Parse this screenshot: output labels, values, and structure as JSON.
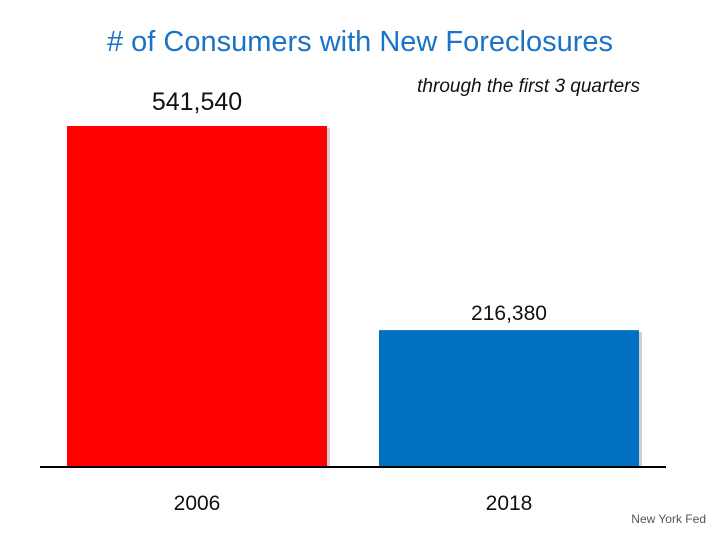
{
  "title": "# of Consumers with New Foreclosures",
  "subtitle": "through the first 3 quarters",
  "source": "New York Fed",
  "chart_data": {
    "type": "bar",
    "categories": [
      "2006",
      "2018"
    ],
    "values": [
      541540,
      216380
    ],
    "value_labels": [
      "541,540",
      "216,380"
    ],
    "colors": [
      "#ff0000",
      "#0070c0"
    ],
    "title": "# of Consumers with New Foreclosures",
    "subtitle": "through the first 3 quarters",
    "xlabel": "",
    "ylabel": "",
    "ylim": [
      0,
      541540
    ],
    "grid": false,
    "legend": "none"
  }
}
